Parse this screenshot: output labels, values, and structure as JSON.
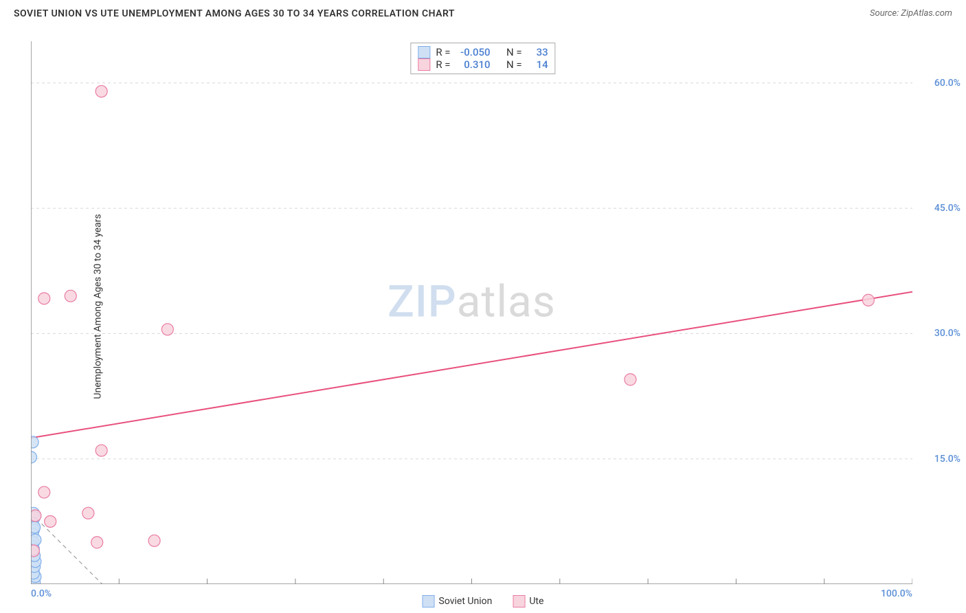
{
  "header": {
    "title": "SOVIET UNION VS UTE UNEMPLOYMENT AMONG AGES 30 TO 34 YEARS CORRELATION CHART",
    "source": "Source: ZipAtlas.com"
  },
  "watermark": {
    "part1": "ZIP",
    "part2": "atlas"
  },
  "chart": {
    "type": "scatter",
    "y_axis_label": "Unemployment Among Ages 30 to 34 years",
    "background_color": "#ffffff",
    "grid_color": "#d8d8d8",
    "axis_color": "#888888",
    "tick_label_color": "#5b8fd6",
    "tick_label_fontsize": 14,
    "xlim": [
      0,
      100
    ],
    "ylim": [
      0,
      65
    ],
    "x_ticks": [
      0,
      10,
      20,
      30,
      40,
      50,
      60,
      70,
      80,
      90,
      100
    ],
    "x_tick_labels_shown": {
      "0": "0.0%",
      "100": "100.0%"
    },
    "y_ticks": [
      15,
      30,
      45,
      60
    ],
    "y_tick_format": "{v}.0%",
    "marker_radius": 8.5,
    "marker_stroke_width": 1.2,
    "series": [
      {
        "name": "Soviet Union",
        "fill": "#cfe0f5",
        "stroke": "#7faeea",
        "R": "-0.050",
        "N": "33",
        "points": [
          [
            0.2,
            17.0
          ],
          [
            0.0,
            15.2
          ],
          [
            0.3,
            8.5
          ],
          [
            0.4,
            8.0
          ],
          [
            0.2,
            7.3
          ],
          [
            0.3,
            6.5
          ],
          [
            0.2,
            6.0
          ],
          [
            0.1,
            5.5
          ],
          [
            0.3,
            5.0
          ],
          [
            0.2,
            4.5
          ],
          [
            0.1,
            4.0
          ],
          [
            0.2,
            3.6
          ],
          [
            0.3,
            3.2
          ],
          [
            0.1,
            2.8
          ],
          [
            0.2,
            2.4
          ],
          [
            0.1,
            2.0
          ],
          [
            0.2,
            1.7
          ],
          [
            0.3,
            1.4
          ],
          [
            0.1,
            1.1
          ],
          [
            0.2,
            0.8
          ],
          [
            0.0,
            0.5
          ],
          [
            0.1,
            0.3
          ],
          [
            0.0,
            0.1
          ],
          [
            0.2,
            0.0
          ],
          [
            0.4,
            0.2
          ],
          [
            0.5,
            0.9
          ],
          [
            0.3,
            1.3
          ],
          [
            0.4,
            2.1
          ],
          [
            0.5,
            2.7
          ],
          [
            0.4,
            3.4
          ],
          [
            0.3,
            4.2
          ],
          [
            0.5,
            5.3
          ],
          [
            0.4,
            6.8
          ]
        ],
        "trend_line": {
          "x1": 0,
          "y1": 8.5,
          "x2": 10,
          "y2": -2.0,
          "color": "#9aa0a6",
          "dash": "6 5",
          "width": 1.2
        }
      },
      {
        "name": "Ute",
        "fill": "#f8d4de",
        "stroke": "#ea7ba2",
        "R": "0.310",
        "N": "14",
        "points": [
          [
            8.0,
            59.0
          ],
          [
            1.5,
            34.2
          ],
          [
            4.5,
            34.5
          ],
          [
            15.5,
            30.5
          ],
          [
            95.0,
            34.0
          ],
          [
            68.0,
            24.5
          ],
          [
            8.0,
            16.0
          ],
          [
            1.5,
            11.0
          ],
          [
            6.5,
            8.5
          ],
          [
            2.2,
            7.5
          ],
          [
            7.5,
            5.0
          ],
          [
            14.0,
            5.2
          ],
          [
            0.5,
            8.2
          ],
          [
            0.3,
            4.0
          ]
        ],
        "trend_line": {
          "x1": 0,
          "y1": 17.5,
          "x2": 100,
          "y2": 35.0,
          "color": "#e84f7d",
          "dash": "none",
          "width": 2
        }
      }
    ]
  },
  "stats_box": {
    "rows": [
      {
        "swatch_fill": "#cfe0f5",
        "swatch_stroke": "#7faeea",
        "r_label": "R =",
        "r_value": "-0.050",
        "n_label": "N =",
        "n_value": "33"
      },
      {
        "swatch_fill": "#f8d4de",
        "swatch_stroke": "#ea7ba2",
        "r_label": "R =",
        "r_value": "0.310",
        "n_label": "N =",
        "n_value": "14"
      }
    ]
  },
  "legend": {
    "items": [
      {
        "label": "Soviet Union",
        "fill": "#cfe0f5",
        "stroke": "#7faeea"
      },
      {
        "label": "Ute",
        "fill": "#f8d4de",
        "stroke": "#ea7ba2"
      }
    ]
  }
}
